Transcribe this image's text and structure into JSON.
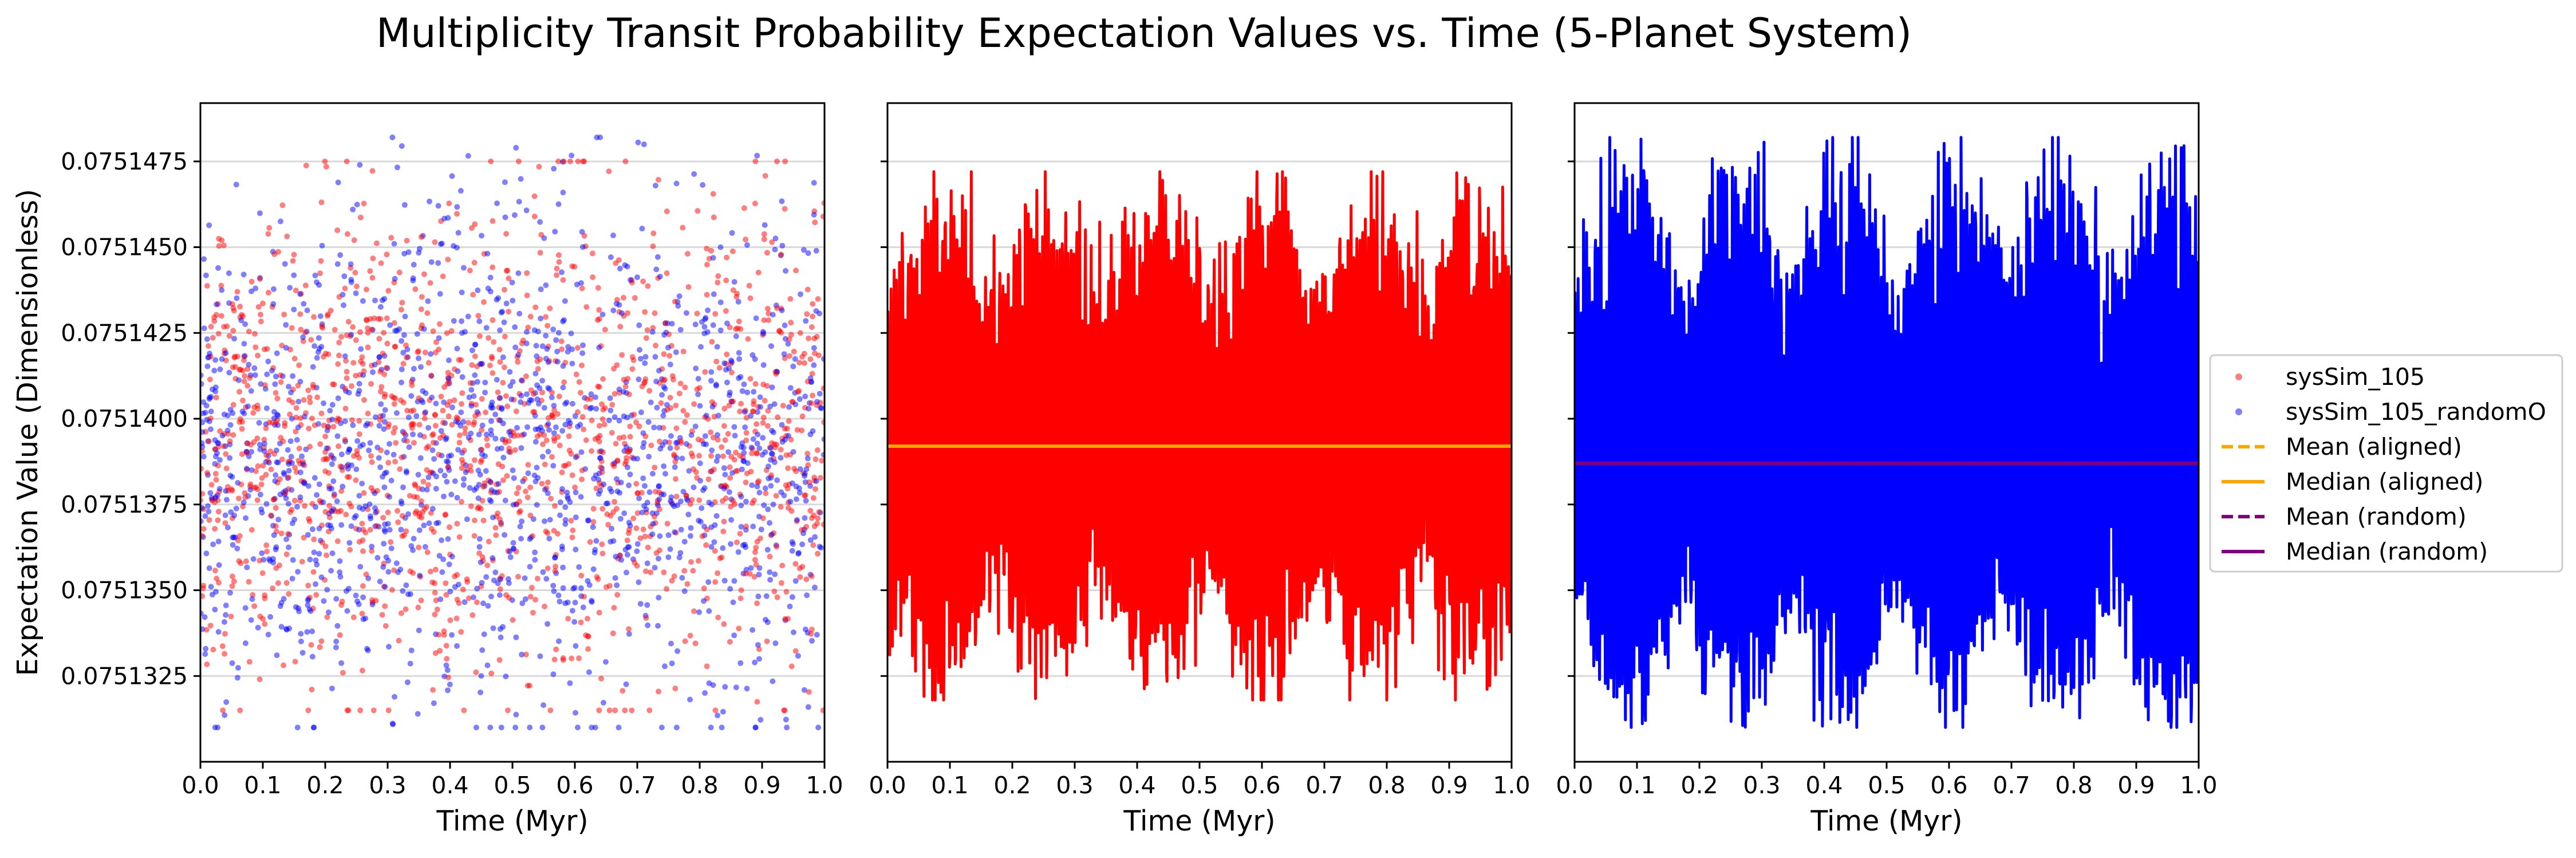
{
  "figure": {
    "title": "Multiplicity Transit Probability Expectation Values vs. Time (5-Planet System)"
  },
  "colors": {
    "aligned": "#ff0000",
    "random": "#0000ff",
    "mean_aligned": "#ffa500",
    "median_aligned": "#ffa500",
    "mean_random": "#800080",
    "median_random": "#800080",
    "grid": "#d9d9d9"
  },
  "legend": {
    "placement": "right-center-outside",
    "entries": [
      {
        "label": "sysSim_105",
        "kind": "marker",
        "color": "#ff0000"
      },
      {
        "label": "sysSim_105_randomO",
        "kind": "marker",
        "color": "#0000ff"
      },
      {
        "label": "Mean (aligned)",
        "kind": "dashed",
        "color": "#ffa500"
      },
      {
        "label": "Median (aligned)",
        "kind": "solid",
        "color": "#ffa500"
      },
      {
        "label": "Mean (random)",
        "kind": "dashed",
        "color": "#800080"
      },
      {
        "label": "Median (random)",
        "kind": "solid",
        "color": "#800080"
      }
    ]
  },
  "chart_data": [
    {
      "type": "scatter",
      "panel": 1,
      "xlabel": "Time (Myr)",
      "ylabel": "Expectation Value (Dimensionless)",
      "xlim": [
        0.0,
        1.0
      ],
      "ylim": [
        0.07513,
        0.0751492
      ],
      "xticks": [
        "0.0",
        "0.1",
        "0.2",
        "0.3",
        "0.4",
        "0.5",
        "0.6",
        "0.7",
        "0.8",
        "0.9",
        "1.0"
      ],
      "yticks": [
        "0.0751325",
        "0.0751350",
        "0.0751375",
        "0.0751400",
        "0.0751425",
        "0.0751450",
        "0.0751475"
      ],
      "grid": "y",
      "series": [
        {
          "name": "sysSim_105",
          "color": "#ff0000",
          "n_points": 1500,
          "range": [
            0.0751315,
            0.0751475
          ],
          "center": 0.0751392
        },
        {
          "name": "sysSim_105_randomO",
          "color": "#0000ff",
          "n_points": 1500,
          "range": [
            0.075131,
            0.0751482
          ],
          "center": 0.0751387
        }
      ]
    },
    {
      "type": "line",
      "panel": 2,
      "xlabel": "Time (Myr)",
      "xlim": [
        0.0,
        1.0
      ],
      "ylim": [
        0.07513,
        0.0751492
      ],
      "xticks": [
        "0.0",
        "0.1",
        "0.2",
        "0.3",
        "0.4",
        "0.5",
        "0.6",
        "0.7",
        "0.8",
        "0.9",
        "1.0"
      ],
      "grid": "y",
      "series": [
        {
          "name": "sysSim_105",
          "color": "#ff0000",
          "range": [
            0.0751318,
            0.0751472
          ]
        }
      ],
      "hlines": [
        {
          "name": "Mean (aligned)",
          "value": 0.0751392,
          "style": "dashed",
          "color": "#ffa500"
        },
        {
          "name": "Median (aligned)",
          "value": 0.0751392,
          "style": "solid",
          "color": "#ffa500"
        }
      ]
    },
    {
      "type": "line",
      "panel": 3,
      "xlabel": "Time (Myr)",
      "xlim": [
        0.0,
        1.0
      ],
      "ylim": [
        0.07513,
        0.0751492
      ],
      "xticks": [
        "0.0",
        "0.1",
        "0.2",
        "0.3",
        "0.4",
        "0.5",
        "0.6",
        "0.7",
        "0.8",
        "0.9",
        "1.0"
      ],
      "grid": "y",
      "series": [
        {
          "name": "sysSim_105_randomO",
          "color": "#0000ff",
          "range": [
            0.075131,
            0.0751482
          ]
        }
      ],
      "hlines": [
        {
          "name": "Mean (random)",
          "value": 0.0751387,
          "style": "dashed",
          "color": "#800080"
        },
        {
          "name": "Median (random)",
          "value": 0.0751387,
          "style": "solid",
          "color": "#800080"
        }
      ]
    }
  ]
}
